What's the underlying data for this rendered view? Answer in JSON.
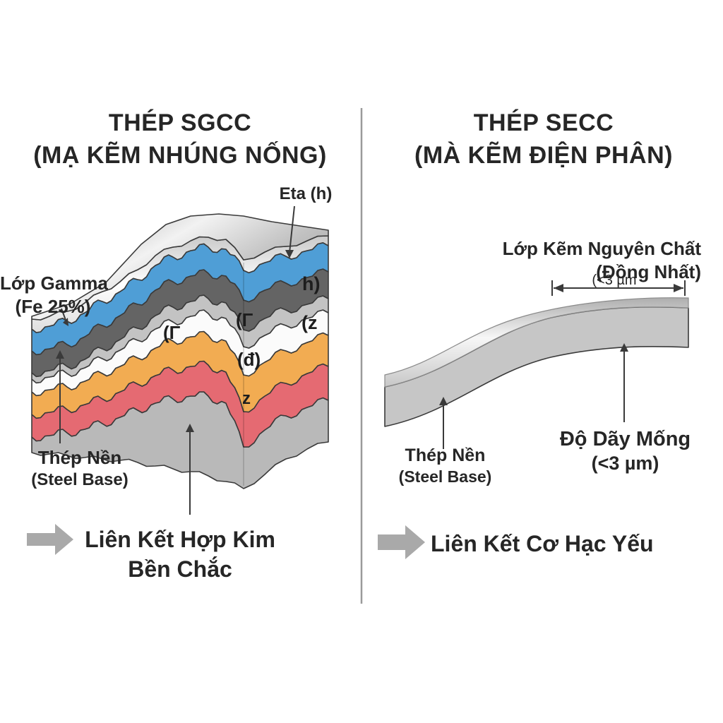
{
  "left_panel": {
    "title_line1": "THÉP SGCC",
    "title_line2": "(MẠ KẼM NHÚNG NỐNG)",
    "eta_label": "Eta (h)",
    "gamma_label_line1": "Lớp Gamma",
    "gamma_label_line2": "(Fe 25%)",
    "steel_base_label_line1": "Thép Nền",
    "steel_base_label_line2": "(Steel Base)",
    "bond_label_line1": "Liên Kết Hợp Kim",
    "bond_label_line2": "Bền Chắc",
    "layer_annotations": [
      {
        "text": "h)"
      },
      {
        "text": "(z"
      },
      {
        "text": "(Γ"
      },
      {
        "text": "(Γ"
      },
      {
        "text": "(đ)"
      },
      {
        "text": "z"
      }
    ],
    "layers": [
      {
        "name": "metallic-top-surface",
        "color": "#d9d9d9"
      },
      {
        "name": "eta-bright-strip",
        "color": "#ececec"
      },
      {
        "name": "blue-layer",
        "color": "#4f9ed6"
      },
      {
        "name": "dark-gray-layer",
        "color": "#646464"
      },
      {
        "name": "light-gray-layer",
        "color": "#c3c3c3"
      },
      {
        "name": "white-layer",
        "color": "#fbfbfb"
      },
      {
        "name": "orange-layer",
        "color": "#f2ac52"
      },
      {
        "name": "red-layer",
        "color": "#e56a72"
      },
      {
        "name": "steel-base-layer",
        "color": "#b9b9b9"
      }
    ]
  },
  "right_panel": {
    "title_line1": "THÉP SECC",
    "title_line2": "(MÀ KẼM ĐIỆN PHÂN)",
    "zinc_label_line1": "Lớp Kẽm Nguyên Chất",
    "zinc_label_line2": "(Đồng Nhất)",
    "dimension_label": "(<3 µm",
    "steel_base_label_line1": "Thép Nền",
    "steel_base_label_line2": "(Steel Base)",
    "thickness_label_line1": "Độ Dãy Mống",
    "thickness_label_line2": "(<3 µm)",
    "bond_label": "Liên Kết Cơ Hạc Yếu",
    "sheet": {
      "zinc_color": "#e9e9e9",
      "base_color": "#c6c6c6"
    }
  },
  "colors": {
    "text": "#262626",
    "outline": "#3a3a3a",
    "arrow_gray": "#a9a9a9",
    "divider": "#9a9a9a"
  }
}
